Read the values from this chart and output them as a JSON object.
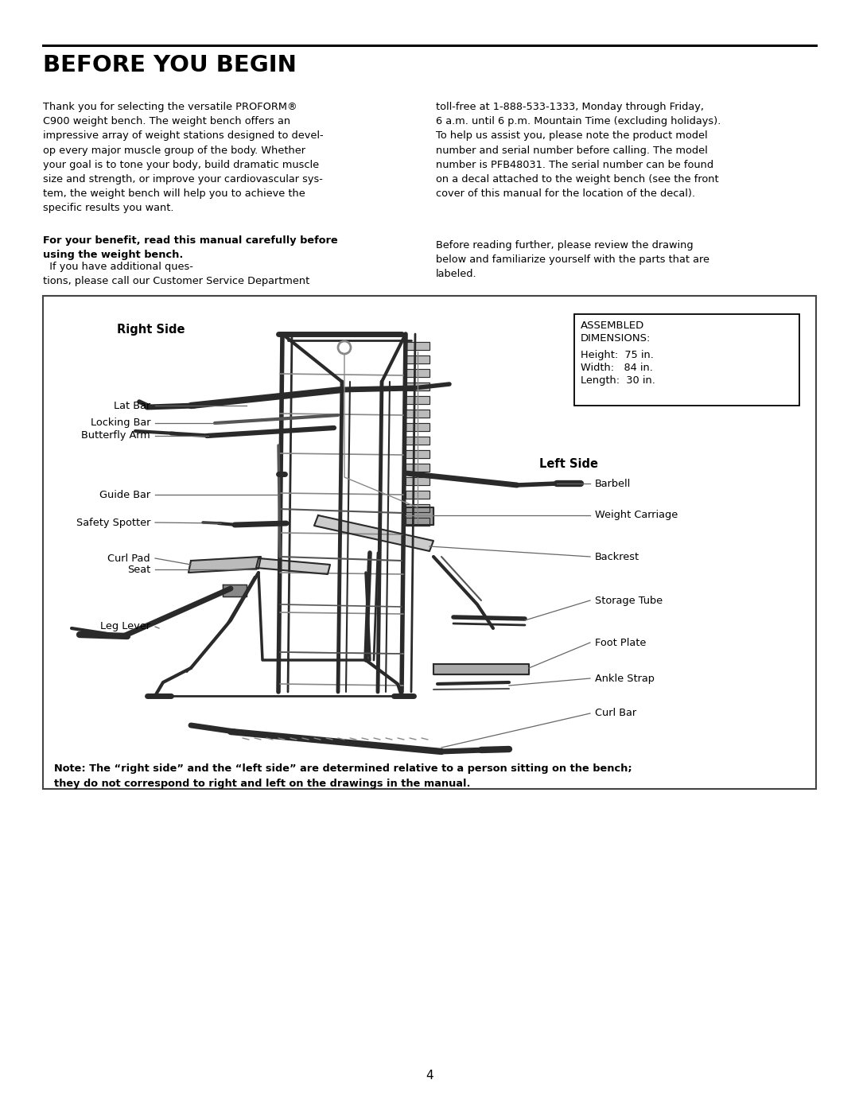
{
  "page_bg": "#ffffff",
  "title": "BEFORE YOU BEGIN",
  "para1_left": "Thank you for selecting the versatile PROFORM®\nC900 weight bench. The weight bench offers an\nimpressive array of weight stations designed to devel-\nop every major muscle group of the body. Whether\nyour goal is to tone your body, build dramatic muscle\nsize and strength, or improve your cardiovascular sys-\ntem, the weight bench will help you to achieve the\nspecific results you want.",
  "para1_bold": "For your benefit, read this manual carefully before\nusing the weight bench.",
  "para1_bold_cont": "  If you have additional ques-\ntions, please call our Customer Service Department",
  "para2_right": "toll-free at 1-888-533-1333, Monday through Friday,\n6 a.m. until 6 p.m. Mountain Time (excluding holidays).\nTo help us assist you, please note the product model\nnumber and serial number before calling. The model\nnumber is PFB48031. The serial number can be found\non a decal attached to the weight bench (see the front\ncover of this manual for the location of the decal).",
  "para3_right": "Before reading further, please review the drawing\nbelow and familiarize yourself with the parts that are\nlabeled.",
  "box_note_bold": "Note: The “right side” and the “left side” are determined relative to a person sitting on the bench;\nthey do not correspond to right and left on the drawings in the manual.",
  "assembled_title": "ASSEMBLED\nDIMENSIONS:",
  "assembled_lines": [
    "Height:  75 in.",
    "Width:   84 in.",
    "Length:  30 in."
  ],
  "right_side_label": "Right Side",
  "left_side_label": "Left Side",
  "page_number": "4",
  "font_color": "#000000",
  "label_line_color": "#666666",
  "box_border_color": "#444444",
  "dim_box_border": "#000000"
}
